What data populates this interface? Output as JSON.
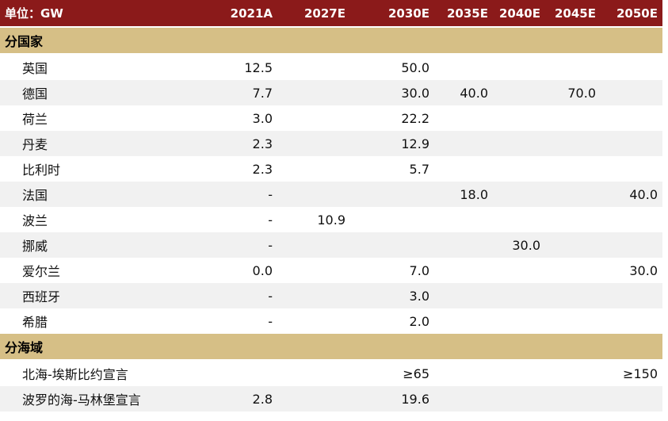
{
  "header": {
    "unit": "单位：GW",
    "columns": [
      "2021A",
      "2027E",
      "2030E",
      "2035E",
      "2040E",
      "2045E",
      "2050E"
    ]
  },
  "sections": [
    {
      "title": "分国家",
      "rows": [
        {
          "label": "英国",
          "cells": [
            "12.5",
            "",
            "50.0",
            "",
            "",
            "",
            ""
          ]
        },
        {
          "label": "德国",
          "cells": [
            "7.7",
            "",
            "30.0",
            "40.0",
            "",
            "70.0",
            ""
          ]
        },
        {
          "label": "荷兰",
          "cells": [
            "3.0",
            "",
            "22.2",
            "",
            "",
            "",
            ""
          ]
        },
        {
          "label": "丹麦",
          "cells": [
            "2.3",
            "",
            "12.9",
            "",
            "",
            "",
            ""
          ]
        },
        {
          "label": "比利时",
          "cells": [
            "2.3",
            "",
            "5.7",
            "",
            "",
            "",
            ""
          ]
        },
        {
          "label": "法国",
          "cells": [
            "-",
            "",
            "",
            "18.0",
            "",
            "",
            "40.0"
          ]
        },
        {
          "label": "波兰",
          "cells": [
            "-",
            "10.9",
            "",
            "",
            "",
            "",
            ""
          ]
        },
        {
          "label": "挪威",
          "cells": [
            "-",
            "",
            "",
            "",
            "30.0",
            "",
            ""
          ]
        },
        {
          "label": "爱尔兰",
          "cells": [
            "0.0",
            "",
            "7.0",
            "",
            "",
            "",
            "30.0"
          ]
        },
        {
          "label": "西班牙",
          "cells": [
            "-",
            "",
            "3.0",
            "",
            "",
            "",
            ""
          ]
        },
        {
          "label": "希腊",
          "cells": [
            "-",
            "",
            "2.0",
            "",
            "",
            "",
            ""
          ]
        }
      ]
    },
    {
      "title": "分海域",
      "rows": [
        {
          "label": "北海-埃斯比约宣言",
          "cells": [
            "",
            "",
            "≥65",
            "",
            "",
            "",
            "≥150"
          ]
        },
        {
          "label": "波罗的海-马林堡宣言",
          "cells": [
            "2.8",
            "",
            "19.6",
            "",
            "",
            "",
            ""
          ]
        }
      ]
    }
  ]
}
